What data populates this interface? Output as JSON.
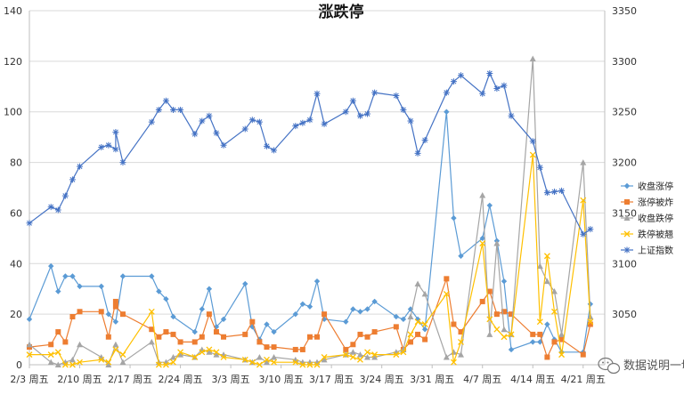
{
  "chart_data": {
    "type": "line",
    "title": "涨跌停",
    "grid": true,
    "legend_position": "right",
    "y_left": {
      "min": 0,
      "max": 140,
      "step": 20,
      "ticks": [
        "0",
        "20",
        "40",
        "60",
        "80",
        "100",
        "120",
        "140"
      ]
    },
    "y_right": {
      "min": 3000,
      "max": 3350,
      "step": 50,
      "ticks": [
        "3050",
        "3100",
        "3150",
        "3200",
        "3250",
        "3300",
        "3350"
      ]
    },
    "x_range": [
      0,
      80
    ],
    "x_ticks": [
      {
        "x": 0,
        "label": "2/3 周五"
      },
      {
        "x": 7,
        "label": "2/10 周五"
      },
      {
        "x": 14,
        "label": "2/17 周五"
      },
      {
        "x": 21,
        "label": "2/24 周五"
      },
      {
        "x": 28,
        "label": "3/3 周五"
      },
      {
        "x": 35,
        "label": "3/10 周五"
      },
      {
        "x": 42,
        "label": "3/17 周五"
      },
      {
        "x": 49,
        "label": "3/24 周五"
      },
      {
        "x": 56,
        "label": "3/31 周五"
      },
      {
        "x": 63,
        "label": "4/7 周五"
      },
      {
        "x": 70,
        "label": "4/14 周五"
      },
      {
        "x": 77,
        "label": "4/21 周五"
      }
    ],
    "series": [
      {
        "name": "收盘涨停",
        "color": "#5b9bd5",
        "marker": "diamond",
        "axis": "left",
        "points": [
          [
            0,
            18
          ],
          [
            3,
            39
          ],
          [
            4,
            29
          ],
          [
            5,
            35
          ],
          [
            6,
            35
          ],
          [
            7,
            31
          ],
          [
            10,
            31
          ],
          [
            11,
            20
          ],
          [
            12,
            17
          ],
          [
            13,
            35
          ],
          [
            17,
            35
          ],
          [
            18,
            29
          ],
          [
            19,
            26
          ],
          [
            20,
            19
          ],
          [
            23,
            13
          ],
          [
            24,
            22
          ],
          [
            25,
            30
          ],
          [
            26,
            15
          ],
          [
            27,
            18
          ],
          [
            30,
            32
          ],
          [
            31,
            15
          ],
          [
            32,
            10
          ],
          [
            33,
            16
          ],
          [
            34,
            13
          ],
          [
            37,
            20
          ],
          [
            38,
            24
          ],
          [
            39,
            23
          ],
          [
            40,
            33
          ],
          [
            41,
            18
          ],
          [
            44,
            17
          ],
          [
            45,
            22
          ],
          [
            46,
            21
          ],
          [
            47,
            22
          ],
          [
            48,
            25
          ],
          [
            51,
            19
          ],
          [
            52,
            18
          ],
          [
            53,
            22
          ],
          [
            54,
            18
          ],
          [
            55,
            14
          ],
          [
            58,
            100
          ],
          [
            59,
            58
          ],
          [
            60,
            43
          ],
          [
            63,
            50
          ],
          [
            64,
            63
          ],
          [
            65,
            49
          ],
          [
            66,
            33
          ],
          [
            67,
            6
          ],
          [
            70,
            9
          ],
          [
            71,
            9
          ],
          [
            72,
            16
          ],
          [
            73,
            10
          ],
          [
            74,
            5
          ],
          [
            77,
            5
          ],
          [
            78,
            24
          ]
        ]
      },
      {
        "name": "涨停被炸",
        "color": "#ed7d31",
        "marker": "square",
        "axis": "left",
        "points": [
          [
            0,
            7
          ],
          [
            3,
            8
          ],
          [
            4,
            13
          ],
          [
            5,
            9
          ],
          [
            6,
            19
          ],
          [
            7,
            21
          ],
          [
            10,
            21
          ],
          [
            11,
            11
          ],
          [
            12,
            25
          ],
          [
            12,
            23
          ],
          [
            13,
            20
          ],
          [
            17,
            14
          ],
          [
            18,
            11
          ],
          [
            19,
            13
          ],
          [
            20,
            12
          ],
          [
            21,
            9
          ],
          [
            23,
            9
          ],
          [
            24,
            11
          ],
          [
            25,
            20
          ],
          [
            26,
            13
          ],
          [
            27,
            11
          ],
          [
            30,
            12
          ],
          [
            31,
            17
          ],
          [
            32,
            9
          ],
          [
            33,
            7
          ],
          [
            34,
            7
          ],
          [
            37,
            6
          ],
          [
            38,
            6
          ],
          [
            39,
            11
          ],
          [
            40,
            11
          ],
          [
            41,
            20
          ],
          [
            44,
            6
          ],
          [
            45,
            8
          ],
          [
            46,
            12
          ],
          [
            47,
            11
          ],
          [
            48,
            13
          ],
          [
            51,
            15
          ],
          [
            52,
            6
          ],
          [
            53,
            9
          ],
          [
            54,
            12
          ],
          [
            55,
            10
          ],
          [
            58,
            34
          ],
          [
            59,
            16
          ],
          [
            60,
            13
          ],
          [
            63,
            25
          ],
          [
            64,
            29
          ],
          [
            65,
            20
          ],
          [
            66,
            21
          ],
          [
            67,
            20
          ],
          [
            70,
            12
          ],
          [
            71,
            12
          ],
          [
            72,
            3
          ],
          [
            73,
            9
          ],
          [
            74,
            10
          ],
          [
            77,
            4
          ],
          [
            78,
            16
          ]
        ]
      },
      {
        "name": "收盘跌停",
        "color": "#a5a5a5",
        "marker": "triangle",
        "axis": "left",
        "points": [
          [
            0,
            8
          ],
          [
            3,
            1
          ],
          [
            4,
            0
          ],
          [
            5,
            1
          ],
          [
            6,
            2
          ],
          [
            7,
            8
          ],
          [
            10,
            3
          ],
          [
            11,
            0
          ],
          [
            12,
            8
          ],
          [
            13,
            1
          ],
          [
            17,
            9
          ],
          [
            18,
            1
          ],
          [
            19,
            1
          ],
          [
            20,
            3
          ],
          [
            21,
            4
          ],
          [
            23,
            3
          ],
          [
            24,
            6
          ],
          [
            25,
            5
          ],
          [
            26,
            4
          ],
          [
            27,
            4
          ],
          [
            30,
            2
          ],
          [
            31,
            1
          ],
          [
            32,
            3
          ],
          [
            33,
            1
          ],
          [
            34,
            3
          ],
          [
            37,
            2
          ],
          [
            38,
            1
          ],
          [
            39,
            1
          ],
          [
            40,
            1
          ],
          [
            41,
            2
          ],
          [
            44,
            4
          ],
          [
            45,
            5
          ],
          [
            46,
            4
          ],
          [
            47,
            3
          ],
          [
            48,
            3
          ],
          [
            51,
            5
          ],
          [
            52,
            6
          ],
          [
            53,
            19
          ],
          [
            54,
            32
          ],
          [
            55,
            28
          ],
          [
            58,
            3
          ],
          [
            59,
            5
          ],
          [
            60,
            4
          ],
          [
            63,
            67
          ],
          [
            64,
            12
          ],
          [
            65,
            48
          ],
          [
            66,
            14
          ],
          [
            67,
            12
          ],
          [
            70,
            121
          ],
          [
            71,
            39
          ],
          [
            72,
            33
          ],
          [
            73,
            29
          ],
          [
            74,
            12
          ],
          [
            77,
            80
          ],
          [
            78,
            19
          ]
        ]
      },
      {
        "name": "跌停被翘",
        "color": "#ffc000",
        "marker": "x",
        "axis": "left",
        "points": [
          [
            0,
            4
          ],
          [
            3,
            4
          ],
          [
            4,
            5
          ],
          [
            5,
            0
          ],
          [
            6,
            0
          ],
          [
            7,
            1
          ],
          [
            10,
            2
          ],
          [
            11,
            1
          ],
          [
            12,
            6
          ],
          [
            13,
            4
          ],
          [
            17,
            21
          ],
          [
            18,
            0
          ],
          [
            19,
            0
          ],
          [
            20,
            1
          ],
          [
            21,
            5
          ],
          [
            23,
            3
          ],
          [
            24,
            5
          ],
          [
            25,
            6
          ],
          [
            26,
            5
          ],
          [
            27,
            3
          ],
          [
            30,
            2
          ],
          [
            31,
            1
          ],
          [
            32,
            0
          ],
          [
            33,
            2
          ],
          [
            34,
            1
          ],
          [
            37,
            1
          ],
          [
            38,
            0
          ],
          [
            39,
            0
          ],
          [
            40,
            0
          ],
          [
            41,
            3
          ],
          [
            44,
            4
          ],
          [
            45,
            3
          ],
          [
            46,
            2
          ],
          [
            47,
            5
          ],
          [
            48,
            4
          ],
          [
            51,
            4
          ],
          [
            52,
            5
          ],
          [
            53,
            12
          ],
          [
            54,
            17
          ],
          [
            55,
            16
          ],
          [
            58,
            28
          ],
          [
            59,
            1
          ],
          [
            60,
            9
          ],
          [
            63,
            48
          ],
          [
            64,
            18
          ],
          [
            65,
            14
          ],
          [
            66,
            11
          ],
          [
            67,
            12
          ],
          [
            70,
            83
          ],
          [
            71,
            17
          ],
          [
            72,
            43
          ],
          [
            73,
            21
          ],
          [
            74,
            4
          ],
          [
            77,
            65
          ],
          [
            78,
            17
          ]
        ]
      },
      {
        "name": "上证指数",
        "color": "#4472c4",
        "marker": "star",
        "axis": "right",
        "points": [
          [
            0,
            3140
          ],
          [
            3,
            3156
          ],
          [
            4,
            3153
          ],
          [
            5,
            3167
          ],
          [
            6,
            3183
          ],
          [
            7,
            3196
          ],
          [
            10,
            3215
          ],
          [
            11,
            3217
          ],
          [
            12,
            3213
          ],
          [
            12,
            3230
          ],
          [
            13,
            3200
          ],
          [
            17,
            3240
          ],
          [
            18,
            3252
          ],
          [
            19,
            3261
          ],
          [
            20,
            3252
          ],
          [
            21,
            3252
          ],
          [
            23,
            3228
          ],
          [
            24,
            3241
          ],
          [
            25,
            3246
          ],
          [
            26,
            3229
          ],
          [
            27,
            3217
          ],
          [
            30,
            3233
          ],
          [
            31,
            3242
          ],
          [
            32,
            3240
          ],
          [
            33,
            3216
          ],
          [
            34,
            3212
          ],
          [
            37,
            3236
          ],
          [
            38,
            3239
          ],
          [
            39,
            3242
          ],
          [
            40,
            3268
          ],
          [
            41,
            3238
          ],
          [
            44,
            3250
          ],
          [
            45,
            3261
          ],
          [
            46,
            3246
          ],
          [
            47,
            3248
          ],
          [
            48,
            3269
          ],
          [
            51,
            3266
          ],
          [
            52,
            3252
          ],
          [
            53,
            3241
          ],
          [
            54,
            3209
          ],
          [
            55,
            3222
          ],
          [
            58,
            3269
          ],
          [
            59,
            3280
          ],
          [
            60,
            3286
          ],
          [
            63,
            3268
          ],
          [
            64,
            3288
          ],
          [
            65,
            3273
          ],
          [
            66,
            3276
          ],
          [
            67,
            3246
          ],
          [
            70,
            3221
          ],
          [
            71,
            3195
          ],
          [
            72,
            3170
          ],
          [
            73,
            3171
          ],
          [
            74,
            3172
          ],
          [
            77,
            3129
          ],
          [
            78,
            3134
          ]
        ]
      }
    ],
    "annotation": "数据说明一切"
  }
}
